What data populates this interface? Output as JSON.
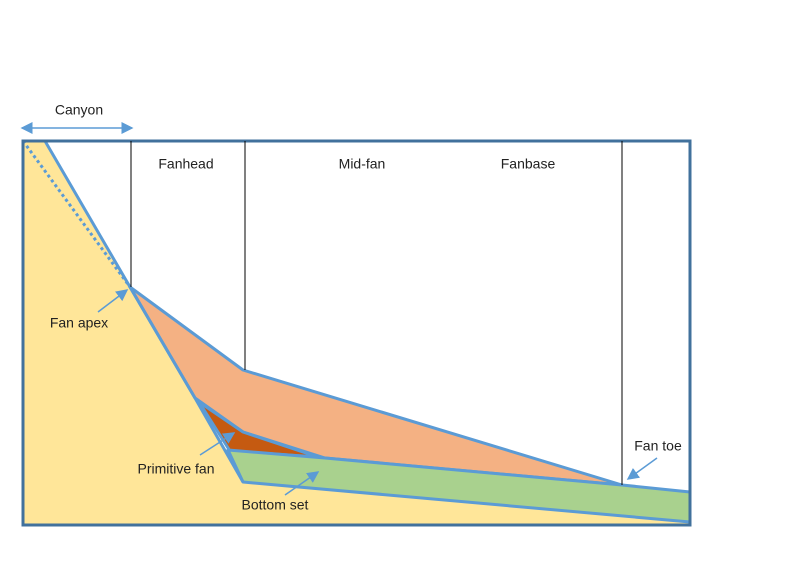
{
  "title_labels": {
    "canyon": "Canyon"
  },
  "zones": [
    "Fanhead",
    "Mid-fan",
    "Fanbase"
  ],
  "annotations": {
    "fan_apex": "Fan apex",
    "primitive_fan": "Primitive fan",
    "bottom_set": "Bottom set",
    "fan_toe": "Fan toe"
  }
}
